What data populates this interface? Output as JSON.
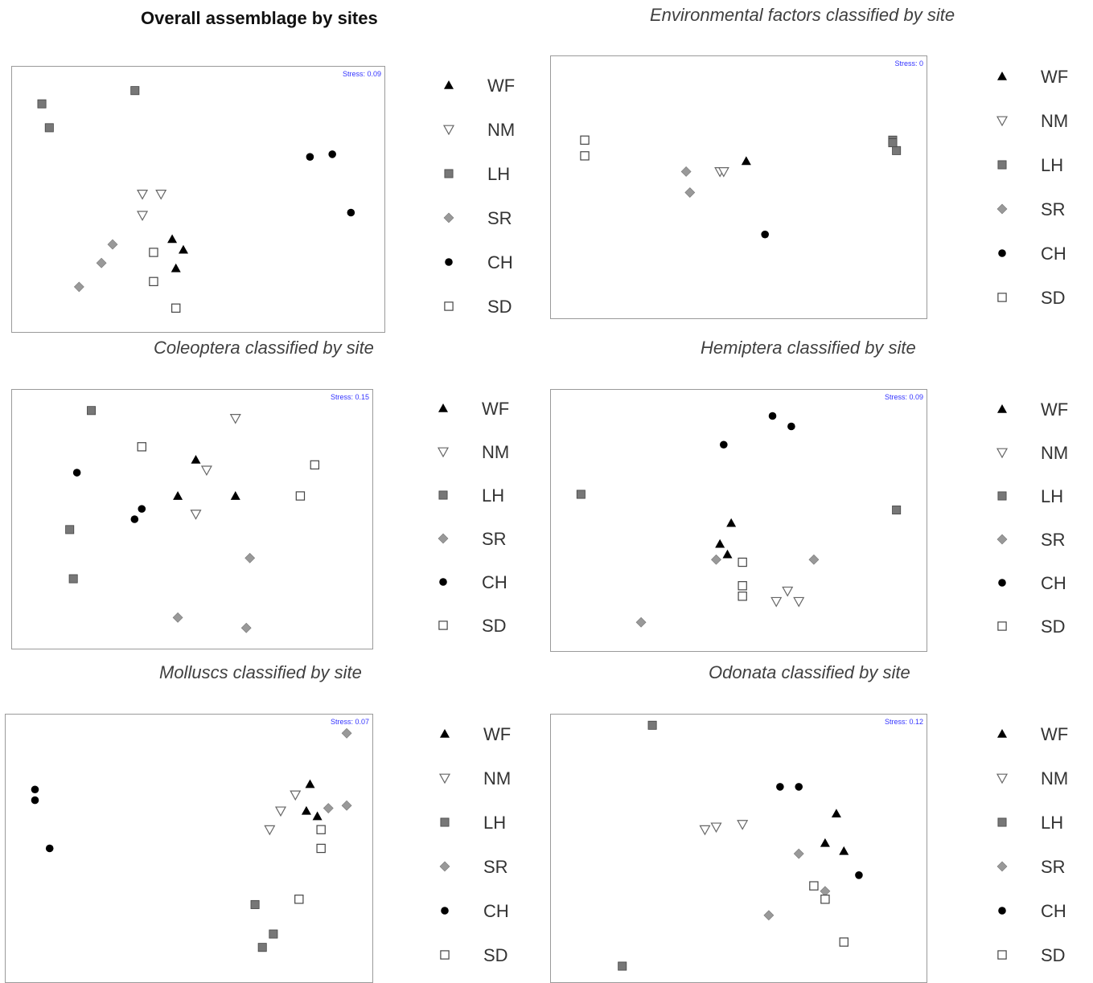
{
  "figure": {
    "headings": [
      "Overall assemblage by sites",
      "Environmental factors classified by site",
      "Coleoptera classified by site",
      "Hemiptera classified by site",
      "Molluscs classified by site",
      "Odonata classified by site"
    ]
  },
  "legend": {
    "items": [
      {
        "label": "WF",
        "marker": "filled-triangle-up",
        "color": "#000000"
      },
      {
        "label": "NM",
        "marker": "open-triangle-down",
        "color": "#666666"
      },
      {
        "label": "LH",
        "marker": "filled-square",
        "color": "#777777"
      },
      {
        "label": "SR",
        "marker": "diamond",
        "color": "#999999"
      },
      {
        "label": "CH",
        "marker": "filled-circle",
        "color": "#000000"
      },
      {
        "label": "SD",
        "marker": "open-square",
        "color": "#444444"
      }
    ]
  },
  "chart_data": [
    {
      "type": "scatter",
      "title": "",
      "stress": "Stress: 0.09",
      "xlabel": "",
      "ylabel": "",
      "xlim": [
        0,
        1
      ],
      "ylim": [
        0,
        1
      ],
      "grid": false,
      "series": [
        {
          "name": "WF",
          "points": [
            [
              0.43,
              0.35
            ],
            [
              0.46,
              0.31
            ],
            [
              0.44,
              0.24
            ]
          ]
        },
        {
          "name": "NM",
          "points": [
            [
              0.35,
              0.52
            ],
            [
              0.4,
              0.52
            ],
            [
              0.35,
              0.44
            ]
          ]
        },
        {
          "name": "LH",
          "points": [
            [
              0.08,
              0.86
            ],
            [
              0.33,
              0.91
            ],
            [
              0.1,
              0.77
            ]
          ]
        },
        {
          "name": "SR",
          "points": [
            [
              0.27,
              0.33
            ],
            [
              0.24,
              0.26
            ],
            [
              0.18,
              0.17
            ]
          ]
        },
        {
          "name": "CH",
          "points": [
            [
              0.8,
              0.66
            ],
            [
              0.86,
              0.67
            ],
            [
              0.91,
              0.45
            ]
          ]
        },
        {
          "name": "SD",
          "points": [
            [
              0.38,
              0.3
            ],
            [
              0.38,
              0.19
            ],
            [
              0.44,
              0.09
            ]
          ]
        }
      ]
    },
    {
      "type": "scatter",
      "title": "",
      "stress": "Stress: 0",
      "xlabel": "",
      "ylabel": "",
      "xlim": [
        0,
        1
      ],
      "ylim": [
        0,
        1
      ],
      "grid": false,
      "series": [
        {
          "name": "WF",
          "points": [
            [
              0.52,
              0.6
            ]
          ]
        },
        {
          "name": "NM",
          "points": [
            [
              0.45,
              0.56
            ],
            [
              0.46,
              0.56
            ]
          ]
        },
        {
          "name": "LH",
          "points": [
            [
              0.91,
              0.68
            ],
            [
              0.92,
              0.64
            ],
            [
              0.91,
              0.67
            ]
          ]
        },
        {
          "name": "SR",
          "points": [
            [
              0.36,
              0.56
            ],
            [
              0.37,
              0.48
            ]
          ]
        },
        {
          "name": "CH",
          "points": [
            [
              0.57,
              0.32
            ]
          ]
        },
        {
          "name": "SD",
          "points": [
            [
              0.09,
              0.68
            ],
            [
              0.09,
              0.62
            ]
          ]
        }
      ]
    },
    {
      "type": "scatter",
      "title": "",
      "stress": "Stress: 0.15",
      "xlabel": "",
      "ylabel": "",
      "xlim": [
        0,
        1
      ],
      "ylim": [
        0,
        1
      ],
      "grid": false,
      "series": [
        {
          "name": "WF",
          "points": [
            [
              0.51,
              0.73
            ],
            [
              0.46,
              0.59
            ],
            [
              0.62,
              0.59
            ]
          ]
        },
        {
          "name": "NM",
          "points": [
            [
              0.62,
              0.89
            ],
            [
              0.54,
              0.69
            ],
            [
              0.51,
              0.52
            ]
          ]
        },
        {
          "name": "LH",
          "points": [
            [
              0.22,
              0.92
            ],
            [
              0.16,
              0.46
            ],
            [
              0.17,
              0.27
            ]
          ]
        },
        {
          "name": "SR",
          "points": [
            [
              0.66,
              0.35
            ],
            [
              0.46,
              0.12
            ],
            [
              0.65,
              0.08
            ]
          ]
        },
        {
          "name": "CH",
          "points": [
            [
              0.18,
              0.68
            ],
            [
              0.36,
              0.54
            ],
            [
              0.34,
              0.5
            ]
          ]
        },
        {
          "name": "SD",
          "points": [
            [
              0.36,
              0.78
            ],
            [
              0.84,
              0.71
            ],
            [
              0.8,
              0.59
            ]
          ]
        }
      ]
    },
    {
      "type": "scatter",
      "title": "",
      "stress": "Stress: 0.09",
      "xlabel": "",
      "ylabel": "",
      "xlim": [
        0,
        1
      ],
      "ylim": [
        0,
        1
      ],
      "grid": false,
      "series": [
        {
          "name": "WF",
          "points": [
            [
              0.48,
              0.49
            ],
            [
              0.45,
              0.41
            ],
            [
              0.47,
              0.37
            ]
          ]
        },
        {
          "name": "NM",
          "points": [
            [
              0.6,
              0.19
            ],
            [
              0.66,
              0.19
            ],
            [
              0.63,
              0.23
            ]
          ]
        },
        {
          "name": "LH",
          "points": [
            [
              0.08,
              0.6
            ],
            [
              0.92,
              0.54
            ]
          ]
        },
        {
          "name": "SR",
          "points": [
            [
              0.44,
              0.35
            ],
            [
              0.7,
              0.35
            ],
            [
              0.24,
              0.11
            ]
          ]
        },
        {
          "name": "CH",
          "points": [
            [
              0.59,
              0.9
            ],
            [
              0.64,
              0.86
            ],
            [
              0.46,
              0.79
            ]
          ]
        },
        {
          "name": "SD",
          "points": [
            [
              0.51,
              0.34
            ],
            [
              0.51,
              0.25
            ],
            [
              0.51,
              0.21
            ]
          ]
        }
      ]
    },
    {
      "type": "scatter",
      "title": "",
      "stress": "Stress: 0.07",
      "xlabel": "",
      "ylabel": "",
      "xlim": [
        0,
        1
      ],
      "ylim": [
        0,
        1
      ],
      "grid": false,
      "series": [
        {
          "name": "WF",
          "points": [
            [
              0.83,
              0.74
            ],
            [
              0.82,
              0.64
            ],
            [
              0.85,
              0.62
            ]
          ]
        },
        {
          "name": "NM",
          "points": [
            [
              0.79,
              0.7
            ],
            [
              0.75,
              0.64
            ],
            [
              0.72,
              0.57
            ]
          ]
        },
        {
          "name": "LH",
          "points": [
            [
              0.68,
              0.29
            ],
            [
              0.73,
              0.18
            ],
            [
              0.7,
              0.13
            ]
          ]
        },
        {
          "name": "SR",
          "points": [
            [
              0.93,
              0.93
            ],
            [
              0.93,
              0.66
            ],
            [
              0.88,
              0.65
            ]
          ]
        },
        {
          "name": "CH",
          "points": [
            [
              0.08,
              0.72
            ],
            [
              0.08,
              0.68
            ],
            [
              0.12,
              0.5
            ]
          ]
        },
        {
          "name": "SD",
          "points": [
            [
              0.86,
              0.57
            ],
            [
              0.86,
              0.5
            ],
            [
              0.8,
              0.31
            ]
          ]
        }
      ]
    },
    {
      "type": "scatter",
      "title": "",
      "stress": "Stress: 0.12",
      "xlabel": "",
      "ylabel": "",
      "xlim": [
        0,
        1
      ],
      "ylim": [
        0,
        1
      ],
      "grid": false,
      "series": [
        {
          "name": "WF",
          "points": [
            [
              0.76,
              0.63
            ],
            [
              0.73,
              0.52
            ],
            [
              0.78,
              0.49
            ]
          ]
        },
        {
          "name": "NM",
          "points": [
            [
              0.41,
              0.57
            ],
            [
              0.44,
              0.58
            ],
            [
              0.51,
              0.59
            ]
          ]
        },
        {
          "name": "LH",
          "points": [
            [
              0.27,
              0.96
            ],
            [
              0.19,
              0.06
            ]
          ]
        },
        {
          "name": "SR",
          "points": [
            [
              0.66,
              0.48
            ],
            [
              0.73,
              0.34
            ],
            [
              0.58,
              0.25
            ]
          ]
        },
        {
          "name": "CH",
          "points": [
            [
              0.61,
              0.73
            ],
            [
              0.66,
              0.73
            ],
            [
              0.82,
              0.4
            ]
          ]
        },
        {
          "name": "SD",
          "points": [
            [
              0.7,
              0.36
            ],
            [
              0.73,
              0.31
            ],
            [
              0.78,
              0.15
            ]
          ]
        }
      ]
    }
  ]
}
